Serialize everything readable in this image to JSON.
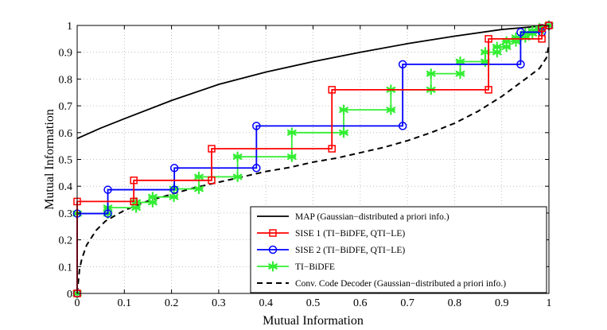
{
  "chart_data": {
    "type": "line",
    "title": "",
    "xlabel": "Mutual Information",
    "ylabel": "Mutual Information",
    "xlim": [
      0,
      1
    ],
    "ylim": [
      0,
      1
    ],
    "grid": "dotted",
    "legend_position": "bottom-right",
    "x_ticks": [
      "0",
      "0.1",
      "0.2",
      "0.3",
      "0.4",
      "0.5",
      "0.6",
      "0.7",
      "0.8",
      "0.9",
      "1"
    ],
    "y_ticks": [
      "0",
      "0.1",
      "0.2",
      "0.3",
      "0.4",
      "0.5",
      "0.6",
      "0.7",
      "0.8",
      "0.9",
      "1"
    ],
    "series": [
      {
        "name": "MAP (Gaussian−distributed a priori info.)",
        "color": "#000000",
        "style": "solid",
        "marker": "none",
        "points": [
          [
            0,
            0.578
          ],
          [
            0.05,
            0.617
          ],
          [
            0.1,
            0.652
          ],
          [
            0.2,
            0.72
          ],
          [
            0.3,
            0.78
          ],
          [
            0.4,
            0.826
          ],
          [
            0.5,
            0.865
          ],
          [
            0.6,
            0.9
          ],
          [
            0.7,
            0.932
          ],
          [
            0.8,
            0.96
          ],
          [
            0.9,
            0.985
          ],
          [
            1.0,
            1.0
          ]
        ]
      },
      {
        "name": "SISE 1 (TI−BiDFE, QTI−LE)",
        "color": "#ff0000",
        "style": "solid",
        "marker": "square",
        "points": [
          [
            0,
            0
          ],
          [
            0,
            0.343
          ],
          [
            0.12,
            0.343
          ],
          [
            0.12,
            0.422
          ],
          [
            0.285,
            0.422
          ],
          [
            0.285,
            0.54
          ],
          [
            0.54,
            0.54
          ],
          [
            0.54,
            0.76
          ],
          [
            0.872,
            0.76
          ],
          [
            0.872,
            0.95
          ],
          [
            0.985,
            0.95
          ],
          [
            0.985,
            0.99
          ],
          [
            1.0,
            1.0
          ]
        ]
      },
      {
        "name": "SISE 2 (TI−BiDFE, QTI−LE)",
        "color": "#0000ff",
        "style": "solid",
        "marker": "circle",
        "points": [
          [
            0,
            0
          ],
          [
            0,
            0.298
          ],
          [
            0.065,
            0.298
          ],
          [
            0.065,
            0.387
          ],
          [
            0.206,
            0.387
          ],
          [
            0.206,
            0.468
          ],
          [
            0.38,
            0.468
          ],
          [
            0.38,
            0.625
          ],
          [
            0.69,
            0.625
          ],
          [
            0.69,
            0.855
          ],
          [
            0.94,
            0.855
          ],
          [
            0.94,
            0.975
          ],
          [
            0.985,
            0.975
          ],
          [
            0.985,
            0.99
          ],
          [
            1.0,
            1.0
          ]
        ]
      },
      {
        "name": "TI−BiDFE",
        "color": "#33ee33",
        "style": "solid",
        "marker": "asterisk",
        "points": [
          [
            0,
            0
          ],
          [
            0,
            0.298
          ],
          [
            0.065,
            0.298
          ],
          [
            0.065,
            0.32
          ],
          [
            0.125,
            0.32
          ],
          [
            0.125,
            0.34
          ],
          [
            0.16,
            0.34
          ],
          [
            0.16,
            0.36
          ],
          [
            0.205,
            0.36
          ],
          [
            0.205,
            0.39
          ],
          [
            0.258,
            0.39
          ],
          [
            0.258,
            0.435
          ],
          [
            0.34,
            0.435
          ],
          [
            0.34,
            0.51
          ],
          [
            0.455,
            0.51
          ],
          [
            0.455,
            0.6
          ],
          [
            0.565,
            0.6
          ],
          [
            0.565,
            0.685
          ],
          [
            0.665,
            0.685
          ],
          [
            0.665,
            0.76
          ],
          [
            0.75,
            0.76
          ],
          [
            0.75,
            0.82
          ],
          [
            0.812,
            0.82
          ],
          [
            0.812,
            0.865
          ],
          [
            0.865,
            0.865
          ],
          [
            0.865,
            0.9
          ],
          [
            0.89,
            0.9
          ],
          [
            0.89,
            0.92
          ],
          [
            0.91,
            0.92
          ],
          [
            0.91,
            0.94
          ],
          [
            0.93,
            0.94
          ],
          [
            0.93,
            0.955
          ],
          [
            0.95,
            0.955
          ],
          [
            0.95,
            0.97
          ],
          [
            0.965,
            0.97
          ],
          [
            0.965,
            0.98
          ],
          [
            0.98,
            0.98
          ],
          [
            0.98,
            0.99
          ],
          [
            1.0,
            1.0
          ]
        ]
      },
      {
        "name": "Conv. Code Decoder (Gaussian−distributed a priori info.)",
        "color": "#000000",
        "style": "dashed",
        "marker": "none",
        "points": [
          [
            0,
            0.0
          ],
          [
            0.005,
            0.09
          ],
          [
            0.01,
            0.13
          ],
          [
            0.02,
            0.18
          ],
          [
            0.04,
            0.235
          ],
          [
            0.06,
            0.27
          ],
          [
            0.1,
            0.31
          ],
          [
            0.15,
            0.345
          ],
          [
            0.2,
            0.37
          ],
          [
            0.25,
            0.395
          ],
          [
            0.3,
            0.415
          ],
          [
            0.35,
            0.435
          ],
          [
            0.4,
            0.455
          ],
          [
            0.45,
            0.47
          ],
          [
            0.5,
            0.49
          ],
          [
            0.55,
            0.505
          ],
          [
            0.6,
            0.525
          ],
          [
            0.65,
            0.545
          ],
          [
            0.7,
            0.57
          ],
          [
            0.75,
            0.6
          ],
          [
            0.8,
            0.635
          ],
          [
            0.85,
            0.68
          ],
          [
            0.9,
            0.735
          ],
          [
            0.95,
            0.8
          ],
          [
            0.98,
            0.84
          ],
          [
            0.995,
            0.88
          ],
          [
            1.0,
            0.93
          ]
        ]
      }
    ]
  }
}
